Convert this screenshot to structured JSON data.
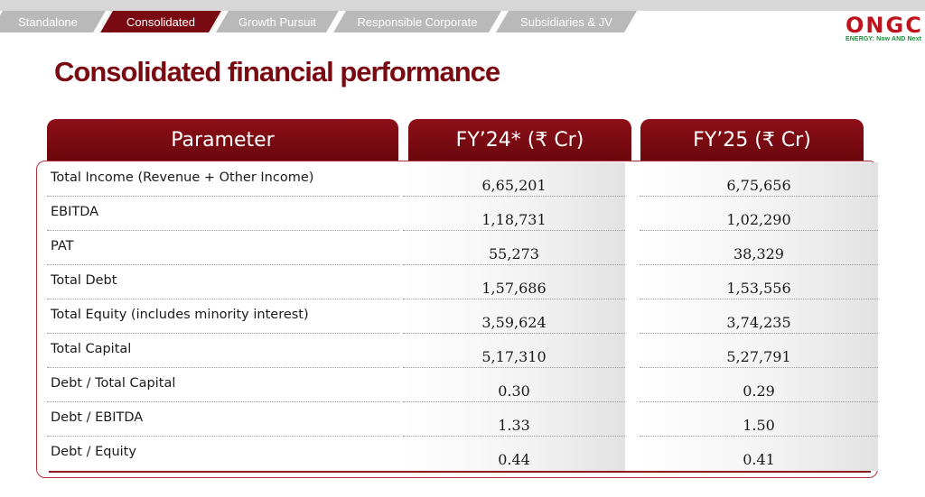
{
  "tabs": [
    {
      "label": "Standalone",
      "active": false
    },
    {
      "label": "Consolidated",
      "active": true
    },
    {
      "label": "Growth Pursuit",
      "active": false
    },
    {
      "label": "Responsible Corporate",
      "active": false
    },
    {
      "label": "Subsidiaries & JV",
      "active": false
    }
  ],
  "logo": {
    "mark": "ONGC",
    "tagline": "ENERGY: Now AND Next"
  },
  "title": "Consolidated financial performance",
  "table": {
    "headers": [
      "Parameter",
      "FY’24* (₹ Cr)",
      "FY’25 (₹ Cr)"
    ],
    "rows": [
      {
        "parameter": "Total Income (Revenue + Other Income)",
        "fy24": "6,65,201",
        "fy25": "6,75,656"
      },
      {
        "parameter": "EBITDA",
        "fy24": "1,18,731",
        "fy25": "1,02,290"
      },
      {
        "parameter": "PAT",
        "fy24": "55,273",
        "fy25": "38,329"
      },
      {
        "parameter": "Total Debt",
        "fy24": "1,57,686",
        "fy25": "1,53,556"
      },
      {
        "parameter": "Total Equity (includes minority interest)",
        "fy24": "3,59,624",
        "fy25": "3,74,235"
      },
      {
        "parameter": "Total Capital",
        "fy24": "5,17,310",
        "fy25": "5,27,791"
      },
      {
        "parameter": "Debt / Total Capital",
        "fy24": "0.30",
        "fy25": "0.29"
      },
      {
        "parameter": "Debt / EBITDA",
        "fy24": "1.33",
        "fy25": "1.50"
      },
      {
        "parameter": "Debt / Equity",
        "fy24": "0.44",
        "fy25": "0.41"
      }
    ]
  },
  "colors": {
    "brand": "#7a0a12",
    "tab_inactive": "#b9b9b9",
    "logo_red": "#c0121c",
    "logo_green": "#1d8a3a"
  }
}
